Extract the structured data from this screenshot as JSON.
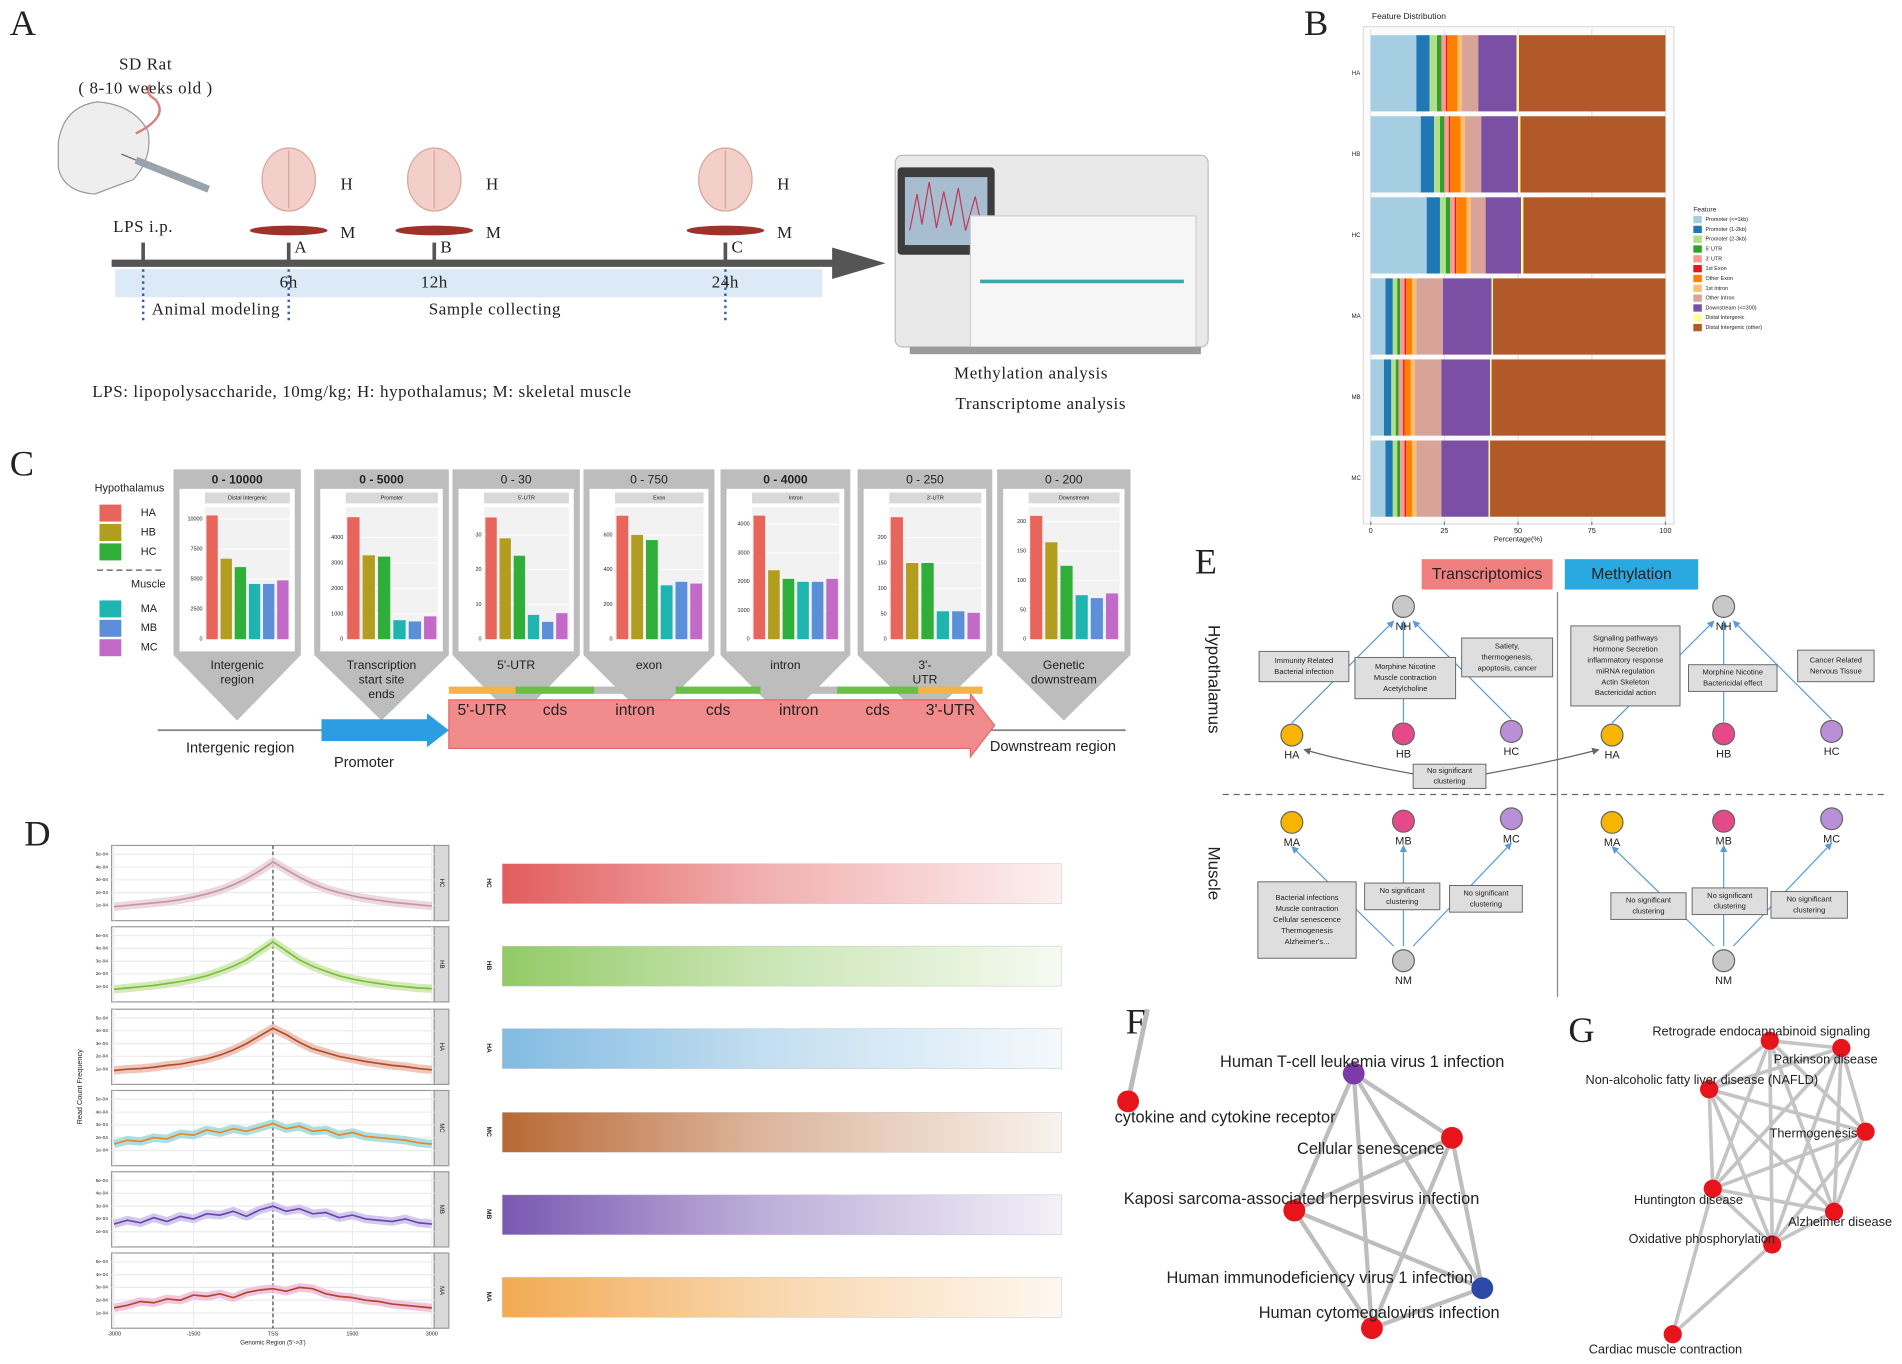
{
  "panel_labels": [
    "A",
    "B",
    "C",
    "D",
    "E",
    "F",
    "G"
  ],
  "panel_a": {
    "subject": "SD Rat",
    "age": "( 8-10 weeks old )",
    "injection": "LPS i.p.",
    "tissue_h": "H",
    "tissue_m": "M",
    "timepoints": [
      {
        "group": "A",
        "time": "6h"
      },
      {
        "group": "B",
        "time": "12h"
      },
      {
        "group": "C",
        "time": "24h"
      }
    ],
    "phases": [
      "Animal modeling",
      "Sample collecting"
    ],
    "footnote": "LPS: lipopolysaccharide, 10mg/kg; H: hypothalamus; M: skeletal muscle",
    "analyses": [
      "Methylation analysis",
      "Transcriptome analysis"
    ]
  },
  "chart_data": [
    {
      "type": "bar",
      "orientation": "horizontal",
      "stacked": true,
      "title": "Feature Distribution",
      "xlabel": "Percentage(%)",
      "categories": [
        "HA",
        "HB",
        "HC",
        "MA",
        "MB",
        "MC"
      ],
      "xlim": [
        0,
        100
      ],
      "xticks": [
        0,
        25,
        50,
        75,
        100
      ],
      "grid": true,
      "legend_title": "Feature",
      "series": [
        {
          "name": "Promoter (<=1kb)",
          "color": "#a6cee3",
          "values": [
            15.5,
            17,
            19,
            5,
            4.5,
            5
          ]
        },
        {
          "name": "Promoter (1-2kb)",
          "color": "#1f78b4",
          "values": [
            4.5,
            4.5,
            4.5,
            2.5,
            2.5,
            2.5
          ]
        },
        {
          "name": "Promoter (2-3kb)",
          "color": "#b2df8a",
          "values": [
            2.5,
            2,
            2,
            1.5,
            1.5,
            1.5
          ]
        },
        {
          "name": "5' UTR",
          "color": "#33a02c",
          "values": [
            1.5,
            1.5,
            1.5,
            1,
            1,
            1
          ]
        },
        {
          "name": "3' UTR",
          "color": "#fb9a99",
          "values": [
            1.5,
            1.5,
            1.5,
            1.5,
            1.5,
            1.5
          ]
        },
        {
          "name": "1st Exon",
          "color": "#e31a1c",
          "values": [
            0.5,
            0.5,
            0.5,
            0.5,
            0.5,
            0.5
          ]
        },
        {
          "name": "Other Exon",
          "color": "#ff7f00",
          "values": [
            3.5,
            3.5,
            3.5,
            2,
            2,
            2
          ]
        },
        {
          "name": "1st Intron",
          "color": "#fdbf6f",
          "values": [
            1.5,
            1.5,
            1.5,
            1.5,
            1.5,
            1.5
          ]
        },
        {
          "name": "Other Intron",
          "color": "#d8a399",
          "values": [
            5.5,
            5.5,
            5,
            9,
            9,
            8.5
          ]
        },
        {
          "name": "Downstream (<=300)",
          "color": "#7b4fa3",
          "values": [
            13,
            12.5,
            12,
            16.5,
            16.5,
            16
          ]
        },
        {
          "name": "Distal Intergenic",
          "color": "#ffff99",
          "values": [
            0.8,
            0.8,
            0.8,
            0.5,
            0.5,
            0.5
          ]
        },
        {
          "name": "Distal Intergenic (other)",
          "color": "#b15928",
          "values": [
            49.7,
            49.2,
            48.2,
            58.5,
            59,
            59.5
          ]
        }
      ]
    },
    {
      "type": "bar",
      "header": "0 - 10000",
      "emphasis": true,
      "title": "Distal Intergenic",
      "values": [
        10300,
        6700,
        6000,
        4600,
        4600,
        4900
      ],
      "ylim": [
        0,
        11000
      ],
      "yticks": [
        0,
        2500,
        5000,
        7500,
        10000
      ],
      "region": [
        "Intergenic",
        "region"
      ]
    },
    {
      "type": "bar",
      "header": "0 - 5000",
      "emphasis": true,
      "title": "Promoter",
      "values": [
        4800,
        3300,
        3250,
        750,
        700,
        900
      ],
      "ylim": [
        0,
        5200
      ],
      "yticks": [
        0,
        1000,
        2000,
        3000,
        4000
      ],
      "region": [
        "Transcription",
        "start site",
        "ends"
      ]
    },
    {
      "type": "bar",
      "header": "0 - 30",
      "emphasis": false,
      "title": "5'-UTR",
      "values": [
        35,
        29,
        24,
        7,
        5,
        7.5
      ],
      "ylim": [
        0,
        38
      ],
      "yticks": [
        0,
        10,
        20,
        30
      ],
      "region": [
        "5'-UTR"
      ]
    },
    {
      "type": "bar",
      "header": "0 - 750",
      "emphasis": false,
      "title": "Exon",
      "values": [
        710,
        600,
        570,
        310,
        330,
        320
      ],
      "ylim": [
        0,
        760
      ],
      "yticks": [
        0,
        200,
        400,
        600
      ],
      "region": [
        "exon"
      ]
    },
    {
      "type": "bar",
      "header": "0 - 4000",
      "emphasis": true,
      "title": "Intron",
      "values": [
        4300,
        2400,
        2100,
        2000,
        2000,
        2100
      ],
      "ylim": [
        0,
        4600
      ],
      "yticks": [
        0,
        1000,
        2000,
        3000,
        4000
      ],
      "region": [
        "intron"
      ]
    },
    {
      "type": "bar",
      "header": "0 - 250",
      "emphasis": false,
      "title": "3'-UTR",
      "values": [
        240,
        150,
        150,
        55,
        55,
        52
      ],
      "ylim": [
        0,
        260
      ],
      "yticks": [
        0,
        50,
        100,
        150,
        200
      ],
      "region": [
        "3'-",
        "UTR"
      ]
    },
    {
      "type": "bar",
      "header": "0 - 200",
      "emphasis": false,
      "title": "Downstream",
      "values": [
        210,
        165,
        125,
        75,
        70,
        78
      ],
      "ylim": [
        0,
        225
      ],
      "yticks": [
        0,
        50,
        100,
        150,
        200
      ],
      "region": [
        "Genetic",
        "downstream"
      ]
    },
    {
      "type": "line",
      "xlabel": "Genomic Region (5'->3')",
      "ylabel": "Read Count Frequency",
      "x": [
        -3000,
        -2750,
        -2500,
        -2250,
        -2000,
        -1750,
        -1500,
        -1250,
        -1000,
        -750,
        -500,
        -250,
        0,
        250,
        500,
        750,
        1000,
        1250,
        1500,
        1750,
        2000,
        2250,
        2500,
        2750,
        3000
      ],
      "xlim": [
        -3000,
        3000
      ],
      "xticks": [
        -3000,
        -1500,
        {
          "value": 0,
          "label": "TSS"
        },
        1500,
        3000
      ],
      "ylim": [
        0,
        0.00055
      ],
      "yticks": [
        {
          "value": 0.0001,
          "label": "1e-04"
        },
        {
          "value": 0.0002,
          "label": "2e-04"
        },
        {
          "value": 0.0003,
          "label": "3e-04"
        },
        {
          "value": 0.0004,
          "label": "4e-04"
        },
        {
          "value": 0.0005,
          "label": "5e-04"
        }
      ],
      "grid": true,
      "series": [
        {
          "name": "HC",
          "color": "#c596a6",
          "band_color": "#ead0da",
          "heat_color": "#e04a4a",
          "values": [
            9e-05,
            0.0001,
            0.00011,
            0.00012,
            0.00013,
            0.000145,
            0.000165,
            0.00019,
            0.00022,
            0.00026,
            0.00031,
            0.00037,
            0.00044,
            0.00038,
            0.00032,
            0.00027,
            0.00023,
            0.0002,
            0.000175,
            0.000155,
            0.00014,
            0.000125,
            0.000115,
            0.000105,
            9.5e-05
          ]
        },
        {
          "name": "HB",
          "color": "#7cbf3a",
          "band_color": "#cde6ae",
          "heat_color": "#86c455",
          "values": [
            8e-05,
            9e-05,
            0.0001,
            0.00011,
            0.000125,
            0.00014,
            0.00016,
            0.000185,
            0.00022,
            0.00026,
            0.00031,
            0.00038,
            0.00045,
            0.00038,
            0.00031,
            0.00026,
            0.00022,
            0.000185,
            0.00016,
            0.00014,
            0.000125,
            0.00011,
            0.0001,
            9e-05,
            8.5e-05
          ]
        },
        {
          "name": "HA",
          "color": "#b04e2c",
          "band_color": "#ebbcae",
          "heat_color": "#74b3de",
          "values": [
            9e-05,
            0.0001,
            0.000105,
            0.000115,
            0.00013,
            0.00014,
            0.00016,
            0.00018,
            0.00021,
            0.00025,
            0.0003,
            0.00036,
            0.00042,
            0.00037,
            0.00031,
            0.00026,
            0.00023,
            0.0002,
            0.00018,
            0.00016,
            0.000145,
            0.00013,
            0.00012,
            0.000105,
            9.5e-05
          ]
        },
        {
          "name": "MC",
          "color": "#e8862a",
          "band_color": "#9ddada",
          "heat_color": "#b0581e",
          "values": [
            0.00015,
            0.00018,
            0.00017,
            0.0002,
            0.00019,
            0.00023,
            0.00022,
            0.00026,
            0.00024,
            0.00027,
            0.00025,
            0.00028,
            0.00031,
            0.00027,
            0.00029,
            0.00025,
            0.00026,
            0.00022,
            0.00024,
            0.00021,
            0.0002,
            0.00019,
            0.00018,
            0.00016,
            0.00015
          ]
        },
        {
          "name": "MB",
          "color": "#6a46a8",
          "band_color": "#cbbfec",
          "heat_color": "#6a46a8",
          "values": [
            0.00016,
            0.00019,
            0.00017,
            0.00021,
            0.00018,
            0.00022,
            0.0002,
            0.00024,
            0.00023,
            0.00026,
            0.00022,
            0.00027,
            0.0003,
            0.00026,
            0.00028,
            0.00024,
            0.00025,
            0.00021,
            0.00023,
            0.0002,
            0.00019,
            0.00018,
            0.0002,
            0.00017,
            0.00016
          ]
        },
        {
          "name": "MA",
          "color": "#b6452a",
          "band_color": "#ebbcdc",
          "heat_color": "#f0a040",
          "values": [
            0.00014,
            0.00016,
            0.00019,
            0.00018,
            0.00021,
            0.0002,
            0.00024,
            0.00023,
            0.00025,
            0.00022,
            0.00026,
            0.00028,
            0.00029,
            0.00027,
            0.0003,
            0.00029,
            0.00025,
            0.00023,
            0.00022,
            0.0002,
            0.00019,
            0.00017,
            0.00016,
            0.00015,
            0.00014
          ]
        }
      ]
    }
  ],
  "panel_c": {
    "legend": [
      {
        "title": "Hypothalamus",
        "items": [
          {
            "name": "HA",
            "color": "#e8655c"
          },
          {
            "name": "HB",
            "color": "#b39d1e"
          },
          {
            "name": "HC",
            "color": "#2fae3a"
          }
        ]
      },
      {
        "title": "Muscle",
        "items": [
          {
            "name": "MA",
            "color": "#1eb5b0"
          },
          {
            "name": "MB",
            "color": "#5b8fd9"
          },
          {
            "name": "MC",
            "color": "#c36ac8"
          }
        ]
      }
    ],
    "segments": [
      "5'-UTR",
      "cds",
      "intron",
      "cds",
      "intron",
      "cds",
      "3'-UTR"
    ],
    "regions": [
      "Intergenic region",
      "Promoter",
      "Downstream region"
    ]
  },
  "panel_e": {
    "columns": [
      "Transcriptomics",
      "Methylation"
    ],
    "rows": [
      "Hypothalamus",
      "Muscle"
    ],
    "nodes": [
      {
        "label": "NH",
        "color": "#c8c8c8",
        "text": "#333333"
      },
      {
        "label": "HA",
        "color": "#f7b500",
        "text": "#e06a00"
      },
      {
        "label": "HB",
        "color": "#e5498a",
        "text": "#a3204f"
      },
      {
        "label": "HC",
        "color": "#b98fd8",
        "text": "#7a4fb0"
      },
      {
        "label": "MA",
        "color": "#f7b500",
        "text": "#e06a00"
      },
      {
        "label": "MB",
        "color": "#e5498a",
        "text": "#a3204f"
      },
      {
        "label": "MC",
        "color": "#b98fd8",
        "text": "#7a4fb0"
      },
      {
        "label": "NM",
        "color": "#c8c8c8",
        "text": "#333333"
      }
    ],
    "boxes": [
      [
        "Immunity Related",
        "Bacterial infection"
      ],
      [
        "Morphine Nicotine",
        "Muscle contraction",
        "Acetylcholine"
      ],
      [
        "Satiety,",
        "thermogenesis,",
        "apoptosis, cancer"
      ],
      [
        "No significant",
        "clustering"
      ],
      [
        "Signaling pathways",
        "Hormone Secretion",
        "inflammatory response",
        "miRNA regulation",
        "Actin Skeleton",
        "Bactericidal action"
      ],
      [
        "Morphine Nicotine",
        "Bactericidal effect"
      ],
      [
        "Cancer Related",
        "Nervous Tissue"
      ],
      [
        "Bacterial infections",
        "Muscle contraction",
        "Cellular senescence",
        "Thermogenesis",
        "Alzheimer's..."
      ],
      [
        "No significant",
        "clustering"
      ],
      [
        "No significant",
        "clustering"
      ],
      [
        "No significant",
        "clustering"
      ],
      [
        "No significant",
        "clustering"
      ],
      [
        "No significant",
        "clustering"
      ]
    ]
  },
  "panel_f": {
    "nodes": [
      {
        "label": "Human T-cell leukemia virus 1 infection",
        "color": "#7b3aa8"
      },
      {
        "label": "cytokine and cytokine receptor",
        "color": "#e8141c"
      },
      {
        "label": "Cellular senescence",
        "color": "#e8141c"
      },
      {
        "label": "Kaposi sarcoma-associated herpesvirus infection",
        "color": "#e8141c"
      },
      {
        "label": "Human immunodeficiency virus 1 infection",
        "color": "#2b4aa8"
      },
      {
        "label": "Human cytomegalovirus infection",
        "color": "#e8141c"
      }
    ]
  },
  "panel_g": {
    "nodes": [
      {
        "label": "Retrograde endocannabinoid signaling",
        "color": "#e8141c"
      },
      {
        "label": "Parkinson disease",
        "color": "#e8141c"
      },
      {
        "label": "Non-alcoholic fatty liver disease (NAFLD)",
        "color": "#e8141c"
      },
      {
        "label": "Thermogenesis",
        "color": "#e8141c"
      },
      {
        "label": "Huntington disease",
        "color": "#e8141c"
      },
      {
        "label": "Alzheimer disease",
        "color": "#e8141c"
      },
      {
        "label": "Oxidative phosphorylation",
        "color": "#e8141c"
      },
      {
        "label": "Cardiac muscle contraction",
        "color": "#e8141c"
      }
    ]
  }
}
